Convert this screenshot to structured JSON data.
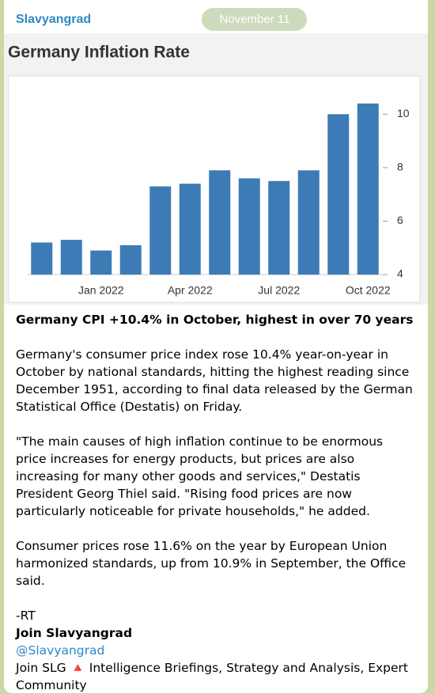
{
  "channel": "Slavyangrad",
  "date": "November 11",
  "chart_data": {
    "type": "bar",
    "title": "Germany Inflation Rate",
    "categories": [
      null,
      null,
      "Jan 2022",
      null,
      null,
      "Apr 2022",
      null,
      null,
      "Jul 2022",
      null,
      null,
      "Oct 2022"
    ],
    "values": [
      5.2,
      5.3,
      4.9,
      5.1,
      7.3,
      7.4,
      7.9,
      7.6,
      7.5,
      7.9,
      10.0,
      10.4
    ],
    "color": "#3d7bb6",
    "ylim": [
      4,
      11.4
    ],
    "yticks": [
      4,
      6,
      8,
      10
    ],
    "grid": false,
    "y_axis_side": "right"
  },
  "post": {
    "headline": "Germany CPI +10.4% in October, highest in over 70 years",
    "paragraphs": [
      "Germany's consumer price index rose 10.4% year-on-year in October by national standards, hitting the highest reading since December 1951, according to final data released by the German Statistical Office (Destatis) on Friday.",
      "\"The main causes of high inflation continue to be enormous price increases for energy products, but prices are also increasing for many other goods and services,\" Destatis President Georg Thiel said. \"Rising food prices are now particularly noticeable for private households,\" he added.",
      "Consumer prices rose 11.6% on the year by European Union harmonized standards, up from 10.9% in September, the Office said."
    ],
    "signature": "-RT",
    "join": "Join Slavyangrad",
    "handle": "@Slavyangrad",
    "footer": "Join SLG 🔺 Intelligence Briefings, Strategy and Analysis, Expert Community"
  }
}
